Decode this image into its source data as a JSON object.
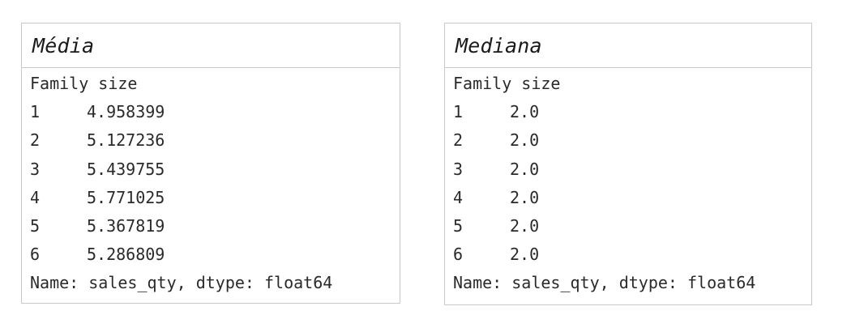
{
  "panels": [
    {
      "title": "Média",
      "index_name": "Family size",
      "rows": [
        {
          "index": "1",
          "value": "4.958399"
        },
        {
          "index": "2",
          "value": "5.127236"
        },
        {
          "index": "3",
          "value": "5.439755"
        },
        {
          "index": "4",
          "value": "5.771025"
        },
        {
          "index": "5",
          "value": "5.367819"
        },
        {
          "index": "6",
          "value": "5.286809"
        }
      ],
      "footer": "Name: sales_qty, dtype: float64"
    },
    {
      "title": "Mediana",
      "index_name": "Family size",
      "rows": [
        {
          "index": "1",
          "value": "2.0"
        },
        {
          "index": "2",
          "value": "2.0"
        },
        {
          "index": "3",
          "value": "2.0"
        },
        {
          "index": "4",
          "value": "2.0"
        },
        {
          "index": "5",
          "value": "2.0"
        },
        {
          "index": "6",
          "value": "2.0"
        }
      ],
      "footer": "Name: sales_qty, dtype: float64"
    }
  ],
  "colors": {
    "border": "#c9c9c9",
    "text": "#2a2a2a",
    "background": "#ffffff"
  }
}
